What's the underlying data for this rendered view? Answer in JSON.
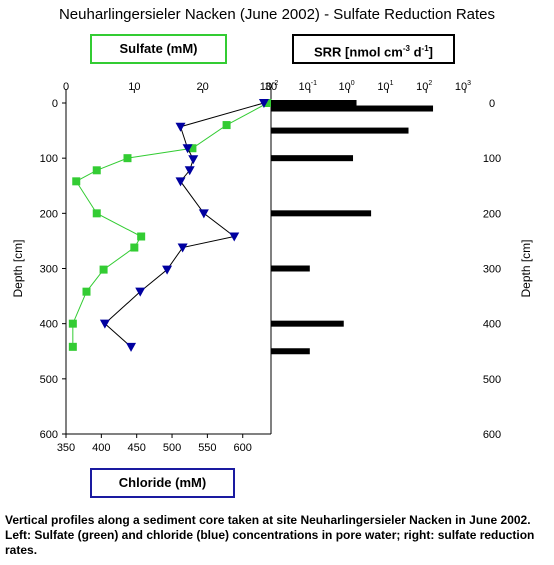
{
  "title": "Neuharlingersieler Nacken (June 2002) - Sulfate Reduction Rates",
  "legends": {
    "sulfate": "Sulfate (mM)",
    "srr_prefix": "SRR [nmol cm",
    "srr_exp1": "-3",
    "srr_mid": " d",
    "srr_exp2": "-1",
    "srr_suffix": "]",
    "chloride": "Chloride (mM)"
  },
  "caption": "Vertical profiles along a sediment core taken at site Neuharlingersieler Nacken in June 2002. Left: Sulfate (green) and chloride (blue) concentrations in pore water; right: sulfate reduction rates.",
  "colors": {
    "sulfate": "#33cc33",
    "chloride": "#0000a0",
    "srr": "#000000"
  },
  "chart_data": [
    {
      "type": "line",
      "ylabel": "Depth [cm]",
      "ylim": [
        0,
        600
      ],
      "yticks": [
        0,
        100,
        200,
        300,
        400,
        500,
        600
      ],
      "y_inverted": true,
      "top_axis": {
        "label": "Sulfate (mM)",
        "ticks": [
          0,
          10,
          20,
          30
        ],
        "lim": [
          0,
          30
        ]
      },
      "bottom_axis": {
        "label": "Chloride (mM)",
        "ticks": [
          350,
          400,
          450,
          500,
          550,
          600
        ],
        "lim": [
          350,
          640
        ]
      },
      "series": [
        {
          "name": "Sulfate (mM)",
          "marker": "square",
          "points": [
            {
              "x": 29.5,
              "y": 0
            },
            {
              "x": 23.5,
              "y": 40
            },
            {
              "x": 18.5,
              "y": 82
            },
            {
              "x": 9,
              "y": 100
            },
            {
              "x": 4.5,
              "y": 122
            },
            {
              "x": 1.5,
              "y": 142
            },
            {
              "x": 4.5,
              "y": 200
            },
            {
              "x": 11,
              "y": 242
            },
            {
              "x": 10,
              "y": 262
            },
            {
              "x": 5.5,
              "y": 302
            },
            {
              "x": 3,
              "y": 342
            },
            {
              "x": 1,
              "y": 400
            },
            {
              "x": 1,
              "y": 442
            }
          ]
        },
        {
          "name": "Chloride (mM)",
          "marker": "triangle-down",
          "points": [
            {
              "x": 630,
              "y": 0
            },
            {
              "x": 512,
              "y": 43
            },
            {
              "x": 522,
              "y": 82
            },
            {
              "x": 530,
              "y": 102
            },
            {
              "x": 525,
              "y": 122
            },
            {
              "x": 512,
              "y": 142
            },
            {
              "x": 545,
              "y": 200
            },
            {
              "x": 588,
              "y": 242
            },
            {
              "x": 515,
              "y": 262
            },
            {
              "x": 493,
              "y": 302
            },
            {
              "x": 455,
              "y": 342
            },
            {
              "x": 405,
              "y": 400
            },
            {
              "x": 442,
              "y": 442
            }
          ]
        }
      ]
    },
    {
      "type": "bar",
      "orientation": "horizontal",
      "name": "SRR [nmol cm-3 d-1]",
      "xscale": "log",
      "xlim": [
        0.01,
        1000
      ],
      "xtick_labels": [
        {
          "base": "10",
          "exp": "-2"
        },
        {
          "base": "10",
          "exp": "-1"
        },
        {
          "base": "10",
          "exp": "0"
        },
        {
          "base": "10",
          "exp": "1"
        },
        {
          "base": "10",
          "exp": "2"
        },
        {
          "base": "10",
          "exp": "3"
        }
      ],
      "ylabel": "Depth [cm]",
      "ylim": [
        0,
        600
      ],
      "yticks": [
        0,
        100,
        200,
        300,
        400,
        500,
        600
      ],
      "bars": [
        {
          "depth": 0,
          "value": 1.6
        },
        {
          "depth": 10,
          "value": 150
        },
        {
          "depth": 50,
          "value": 35
        },
        {
          "depth": 100,
          "value": 1.3
        },
        {
          "depth": 200,
          "value": 3.8
        },
        {
          "depth": 300,
          "value": 0.1
        },
        {
          "depth": 400,
          "value": 0.75
        },
        {
          "depth": 450,
          "value": 0.1
        }
      ]
    }
  ]
}
